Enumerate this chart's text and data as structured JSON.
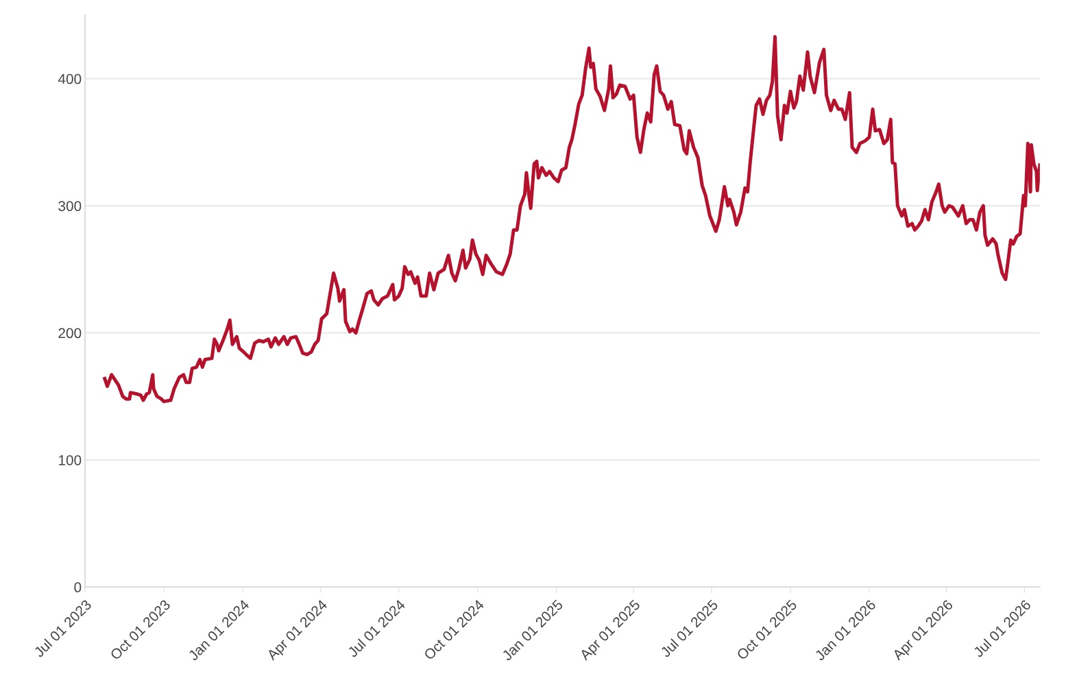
{
  "chart_data": {
    "type": "line",
    "xlim": [
      "2023-07-01",
      "2026-07-19"
    ],
    "ylim": [
      0,
      450
    ],
    "yticks": [
      0,
      100,
      200,
      300,
      400
    ],
    "xticks": [
      {
        "value": "2023-07-01",
        "label": "Jul 01 2023"
      },
      {
        "value": "2023-10-01",
        "label": "Oct 01 2023"
      },
      {
        "value": "2024-01-01",
        "label": "Jan 01 2024"
      },
      {
        "value": "2024-04-01",
        "label": "Apr 01 2024"
      },
      {
        "value": "2024-07-01",
        "label": "Jul 01 2024"
      },
      {
        "value": "2024-10-01",
        "label": "Oct 01 2024"
      },
      {
        "value": "2025-01-01",
        "label": "Jan 01 2025"
      },
      {
        "value": "2025-04-01",
        "label": "Apr 01 2025"
      },
      {
        "value": "2025-07-01",
        "label": "Jul 01 2025"
      },
      {
        "value": "2025-10-01",
        "label": "Oct 01 2025"
      },
      {
        "value": "2026-01-01",
        "label": "Jan 01 2026"
      },
      {
        "value": "2026-04-01",
        "label": "Apr 01 2026"
      },
      {
        "value": "2026-07-01",
        "label": "Jul 01 2026"
      }
    ],
    "grid": "y",
    "legend": false,
    "marker": "none",
    "line_style": "solid",
    "series": [
      {
        "color": "#b5122e",
        "x": [
          "2023-07-24",
          "2023-07-27",
          "2023-08-01",
          "2023-08-05",
          "2023-08-09",
          "2023-08-14",
          "2023-08-18",
          "2023-08-22",
          "2023-08-23",
          "2023-08-30",
          "2023-09-04",
          "2023-09-07",
          "2023-09-11",
          "2023-09-14",
          "2023-09-18",
          "2023-09-19",
          "2023-09-23",
          "2023-09-28",
          "2023-10-01",
          "2023-10-09",
          "2023-10-13",
          "2023-10-19",
          "2023-10-24",
          "2023-10-27",
          "2023-10-31",
          "2023-11-03",
          "2023-11-08",
          "2023-11-12",
          "2023-11-15",
          "2023-11-18",
          "2023-11-26",
          "2023-11-29",
          "2023-12-02",
          "2023-12-04",
          "2023-12-09",
          "2023-12-14",
          "2023-12-17",
          "2023-12-20",
          "2023-12-25",
          "2023-12-28",
          "2024-01-02",
          "2024-01-05",
          "2024-01-10",
          "2024-01-15",
          "2024-01-20",
          "2024-01-25",
          "2024-01-31",
          "2024-02-03",
          "2024-02-08",
          "2024-02-12",
          "2024-02-18",
          "2024-02-22",
          "2024-02-26",
          "2024-03-03",
          "2024-03-07",
          "2024-03-11",
          "2024-03-16",
          "2024-03-21",
          "2024-03-25",
          "2024-03-29",
          "2024-04-02",
          "2024-04-08",
          "2024-04-11",
          "2024-04-16",
          "2024-04-21",
          "2024-04-23",
          "2024-04-28",
          "2024-04-30",
          "2024-05-05",
          "2024-05-08",
          "2024-05-12",
          "2024-05-16",
          "2024-05-20",
          "2024-05-25",
          "2024-05-30",
          "2024-06-02",
          "2024-06-07",
          "2024-06-12",
          "2024-06-18",
          "2024-06-24",
          "2024-06-26",
          "2024-07-01",
          "2024-07-05",
          "2024-07-08",
          "2024-07-12",
          "2024-07-15",
          "2024-07-20",
          "2024-07-23",
          "2024-07-27",
          "2024-08-02",
          "2024-08-06",
          "2024-08-11",
          "2024-08-16",
          "2024-08-23",
          "2024-08-28",
          "2024-09-01",
          "2024-09-05",
          "2024-09-09",
          "2024-09-14",
          "2024-09-17",
          "2024-09-22",
          "2024-09-25",
          "2024-09-29",
          "2024-10-03",
          "2024-10-07",
          "2024-10-11",
          "2024-10-17",
          "2024-10-23",
          "2024-10-30",
          "2024-11-04",
          "2024-11-08",
          "2024-11-12",
          "2024-11-16",
          "2024-11-20",
          "2024-11-25",
          "2024-11-27",
          "2024-11-30",
          "2024-12-02",
          "2024-12-06",
          "2024-12-09",
          "2024-12-11",
          "2024-12-15",
          "2024-12-20",
          "2024-12-24",
          "2024-12-29",
          "2025-01-03",
          "2025-01-07",
          "2025-01-12",
          "2025-01-16",
          "2025-01-19",
          "2025-01-23",
          "2025-01-27",
          "2025-01-31",
          "2025-02-04",
          "2025-02-08",
          "2025-02-10",
          "2025-02-13",
          "2025-02-16",
          "2025-02-21",
          "2025-02-26",
          "2025-03-03",
          "2025-03-05",
          "2025-03-08",
          "2025-03-12",
          "2025-03-16",
          "2025-03-22",
          "2025-03-28",
          "2025-04-01",
          "2025-04-05",
          "2025-04-09",
          "2025-04-13",
          "2025-04-17",
          "2025-04-21",
          "2025-04-25",
          "2025-04-28",
          "2025-05-02",
          "2025-05-06",
          "2025-05-11",
          "2025-05-15",
          "2025-05-19",
          "2025-05-25",
          "2025-05-30",
          "2025-06-02",
          "2025-06-05",
          "2025-06-10",
          "2025-06-15",
          "2025-06-20",
          "2025-06-24",
          "2025-06-29",
          "2025-07-06",
          "2025-07-10",
          "2025-07-16",
          "2025-07-20",
          "2025-07-22",
          "2025-07-27",
          "2025-07-30",
          "2025-08-04",
          "2025-08-09",
          "2025-08-12",
          "2025-08-15",
          "2025-08-19",
          "2025-08-22",
          "2025-08-26",
          "2025-08-30",
          "2025-09-03",
          "2025-09-07",
          "2025-09-10",
          "2025-09-13",
          "2025-09-16",
          "2025-09-20",
          "2025-09-24",
          "2025-09-27",
          "2025-10-01",
          "2025-10-05",
          "2025-10-08",
          "2025-10-12",
          "2025-10-16",
          "2025-10-21",
          "2025-10-24",
          "2025-10-29",
          "2025-11-01",
          "2025-11-04",
          "2025-11-09",
          "2025-11-12",
          "2025-11-17",
          "2025-11-21",
          "2025-11-26",
          "2025-11-30",
          "2025-12-04",
          "2025-12-09",
          "2025-12-12",
          "2025-12-17",
          "2025-12-21",
          "2025-12-27",
          "2026-01-01",
          "2026-01-05",
          "2026-01-08",
          "2026-01-13",
          "2026-01-18",
          "2026-01-22",
          "2026-01-26",
          "2026-01-28",
          "2026-01-31",
          "2026-02-03",
          "2026-02-08",
          "2026-02-11",
          "2026-02-15",
          "2026-02-20",
          "2026-02-23",
          "2026-02-27",
          "2026-03-03",
          "2026-03-07",
          "2026-03-11",
          "2026-03-15",
          "2026-03-20",
          "2026-03-23",
          "2026-03-27",
          "2026-03-30",
          "2026-04-04",
          "2026-04-08",
          "2026-04-15",
          "2026-04-20",
          "2026-04-24",
          "2026-04-28",
          "2026-05-02",
          "2026-05-06",
          "2026-05-10",
          "2026-05-14",
          "2026-05-16",
          "2026-05-19",
          "2026-05-25",
          "2026-05-29",
          "2026-05-31",
          "2026-06-05",
          "2026-06-09",
          "2026-06-12",
          "2026-06-15",
          "2026-06-18",
          "2026-06-22",
          "2026-06-26",
          "2026-06-30",
          "2026-07-02",
          "2026-07-05",
          "2026-07-08",
          "2026-07-09",
          "2026-07-12",
          "2026-07-15",
          "2026-07-16",
          "2026-07-19"
        ],
        "values": [
          164,
          158,
          167,
          163,
          159,
          150,
          148,
          148,
          153,
          152,
          151,
          147,
          152,
          153,
          167,
          156,
          150,
          148,
          146,
          147,
          156,
          165,
          167,
          161,
          161,
          172,
          173,
          179,
          173,
          179,
          180,
          195,
          191,
          186,
          194,
          203,
          210,
          191,
          197,
          188,
          185,
          183,
          180,
          192,
          194,
          193,
          195,
          189,
          196,
          191,
          197,
          191,
          196,
          197,
          191,
          184,
          183,
          185,
          191,
          194,
          211,
          215,
          227,
          247,
          235,
          225,
          234,
          209,
          201,
          203,
          200,
          210,
          219,
          231,
          233,
          226,
          222,
          227,
          229,
          238,
          226,
          229,
          235,
          252,
          246,
          248,
          239,
          244,
          229,
          229,
          247,
          234,
          247,
          250,
          261,
          247,
          241,
          250,
          265,
          251,
          258,
          273,
          262,
          257,
          246,
          261,
          254,
          248,
          246,
          254,
          262,
          281,
          281,
          300,
          309,
          326,
          308,
          298,
          333,
          335,
          322,
          330,
          324,
          327,
          322,
          319,
          328,
          330,
          346,
          352,
          365,
          380,
          387,
          408,
          424,
          409,
          412,
          392,
          386,
          375,
          392,
          410,
          385,
          388,
          395,
          394,
          384,
          387,
          354,
          342,
          360,
          373,
          366,
          403,
          410,
          390,
          387,
          376,
          382,
          364,
          363,
          344,
          341,
          359,
          346,
          338,
          316,
          308,
          292,
          280,
          289,
          315,
          300,
          305,
          295,
          285,
          295,
          314,
          311,
          334,
          360,
          379,
          384,
          372,
          383,
          387,
          398,
          433,
          371,
          352,
          379,
          373,
          390,
          377,
          382,
          402,
          391,
          421,
          402,
          389,
          401,
          413,
          423,
          387,
          375,
          383,
          376,
          376,
          368,
          389,
          346,
          342,
          349,
          351,
          354,
          376,
          359,
          360,
          349,
          352,
          368,
          334,
          333,
          300,
          292,
          297,
          284,
          286,
          281,
          284,
          288,
          297,
          289,
          303,
          311,
          317,
          300,
          295,
          300,
          299,
          292,
          300,
          286,
          289,
          289,
          281,
          295,
          300,
          277,
          269,
          274,
          270,
          262,
          247,
          242,
          257,
          273,
          270,
          276,
          278,
          308,
          300,
          349,
          311,
          348,
          333,
          327,
          312,
          332
        ]
      }
    ]
  }
}
